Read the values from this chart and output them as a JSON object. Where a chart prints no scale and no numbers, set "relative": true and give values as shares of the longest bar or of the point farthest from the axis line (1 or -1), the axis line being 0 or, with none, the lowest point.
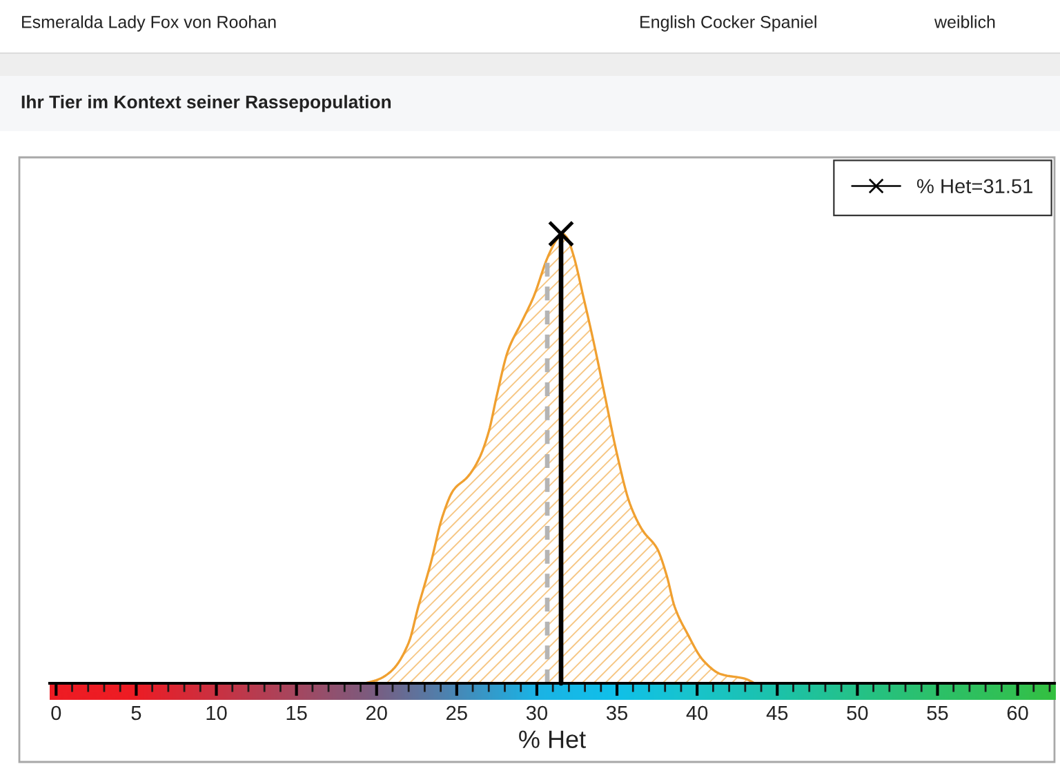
{
  "chart_data": {
    "type": "area",
    "relative": true,
    "title": "Ihr Tier im Kontext seiner Rassepopulation",
    "annotations": [
      "Esmeralda Lady Fox von Roohan",
      "English Cocker Spaniel",
      "weiblich"
    ],
    "xlabel": "% Het",
    "xlim": [
      -0.4,
      62.3
    ],
    "xticks": [
      0,
      {
        "value": 1,
        "label": null
      },
      {
        "value": 2,
        "label": null
      },
      {
        "value": 3,
        "label": null
      },
      {
        "value": 4,
        "label": null
      },
      5,
      {
        "value": 6,
        "label": null
      },
      {
        "value": 7,
        "label": null
      },
      {
        "value": 8,
        "label": null
      },
      {
        "value": 9,
        "label": null
      },
      10,
      {
        "value": 11,
        "label": null
      },
      {
        "value": 12,
        "label": null
      },
      {
        "value": 13,
        "label": null
      },
      {
        "value": 14,
        "label": null
      },
      15,
      {
        "value": 16,
        "label": null
      },
      {
        "value": 17,
        "label": null
      },
      {
        "value": 18,
        "label": null
      },
      {
        "value": 19,
        "label": null
      },
      20,
      {
        "value": 21,
        "label": null
      },
      {
        "value": 22,
        "label": null
      },
      {
        "value": 23,
        "label": null
      },
      {
        "value": 24,
        "label": null
      },
      25,
      {
        "value": 26,
        "label": null
      },
      {
        "value": 27,
        "label": null
      },
      {
        "value": 28,
        "label": null
      },
      {
        "value": 29,
        "label": null
      },
      30,
      {
        "value": 31,
        "label": null
      },
      {
        "value": 32,
        "label": null
      },
      {
        "value": 33,
        "label": null
      },
      {
        "value": 34,
        "label": null
      },
      35,
      {
        "value": 36,
        "label": null
      },
      {
        "value": 37,
        "label": null
      },
      {
        "value": 38,
        "label": null
      },
      {
        "value": 39,
        "label": null
      },
      40,
      {
        "value": 41,
        "label": null
      },
      {
        "value": 42,
        "label": null
      },
      {
        "value": 43,
        "label": null
      },
      {
        "value": 44,
        "label": null
      },
      45,
      {
        "value": 46,
        "label": null
      },
      {
        "value": 47,
        "label": null
      },
      {
        "value": 48,
        "label": null
      },
      {
        "value": 49,
        "label": null
      },
      50,
      {
        "value": 51,
        "label": null
      },
      {
        "value": 52,
        "label": null
      },
      {
        "value": 53,
        "label": null
      },
      {
        "value": 54,
        "label": null
      },
      55,
      {
        "value": 56,
        "label": null
      },
      {
        "value": 57,
        "label": null
      },
      {
        "value": 58,
        "label": null
      },
      {
        "value": 59,
        "label": null
      },
      60,
      {
        "value": 61,
        "label": null
      },
      {
        "value": 62,
        "label": null
      }
    ],
    "series": [
      {
        "color": "#f0a030",
        "x": [
          19.3,
          20.2,
          21.0,
          22.0,
          22.6,
          23.4,
          24.1,
          24.8,
          25.7,
          26.4,
          27.0,
          27.5,
          28.2,
          29.0,
          29.8,
          30.7,
          31.3,
          31.6,
          31.9,
          32.3,
          32.9,
          33.6,
          34.3,
          35.0,
          35.8,
          36.6,
          37.5,
          38.1,
          38.6,
          39.4,
          40.4,
          41.5,
          43.0,
          43.6
        ],
        "values": [
          0,
          0.01,
          0.03,
          0.09,
          0.17,
          0.27,
          0.37,
          0.43,
          0.46,
          0.5,
          0.56,
          0.64,
          0.74,
          0.8,
          0.86,
          0.95,
          0.99,
          1.0,
          0.99,
          0.95,
          0.86,
          0.75,
          0.63,
          0.51,
          0.4,
          0.34,
          0.3,
          0.24,
          0.17,
          0.11,
          0.05,
          0.02,
          0.01,
          0
        ]
      },
      {
        "type": "line",
        "name": "% Het=31.51",
        "color": "#000000",
        "marker": "cross",
        "x": [
          31.51,
          31.51
        ],
        "values": [
          0,
          1.0
        ]
      }
    ],
    "ref_lines": [
      {
        "axis": "x",
        "value": 30.65,
        "color": "#b4b4b4",
        "line_style": "dashed"
      }
    ],
    "legend": "top right"
  }
}
